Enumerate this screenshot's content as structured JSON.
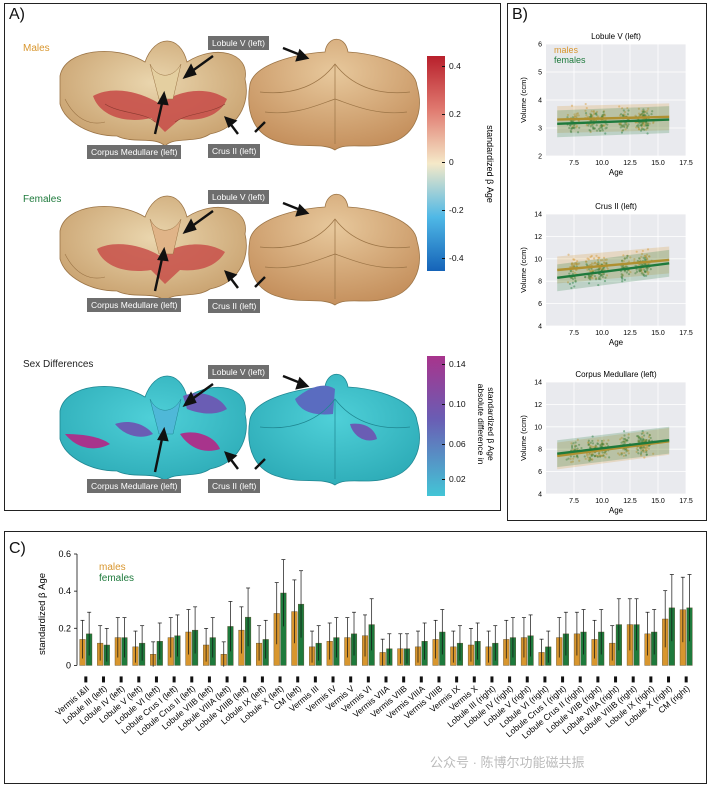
{
  "panelA": {
    "label": "A)",
    "rows": [
      {
        "title": "Males",
        "color": "#d8962e"
      },
      {
        "title": "Females",
        "color": "#1e7a3c"
      },
      {
        "title": "Sex Differences",
        "color": "#222222"
      }
    ],
    "callouts": {
      "lobule": "Lobule V (left)",
      "corpus": "Corpus Medullare (left)",
      "crus": "Crus II (left)"
    },
    "colorbar1": {
      "label": "standardized β Age",
      "ticks": [
        "0.4",
        "0.2",
        "0",
        "-0.2",
        "-0.4"
      ]
    },
    "colorbar2": {
      "label1": "absolute difference in",
      "label2": "standardized β Age",
      "ticks": [
        "0.14",
        "0.10",
        "0.06",
        "0.02"
      ]
    }
  },
  "panelB": {
    "label": "B)"
  },
  "panelC": {
    "label": "C)"
  },
  "watermark": "公众号 · 陈博尔功能磁共振",
  "chart_data": [
    {
      "type": "scatter",
      "title": "Lobule V (left)",
      "xlabel": "Age",
      "ylabel": "Volume (ccm)",
      "xlim": [
        5,
        17.5
      ],
      "ylim": [
        2,
        6
      ],
      "xticks": [
        7.5,
        10.0,
        12.5,
        15.0,
        17.5
      ],
      "yticks": [
        2,
        3,
        4,
        5,
        6
      ],
      "legend": [
        "males",
        "females"
      ],
      "series": [
        {
          "name": "males",
          "fit_x": [
            6,
            16
          ],
          "fit_y": [
            3.3,
            3.4
          ]
        },
        {
          "name": "females",
          "fit_x": [
            6,
            16
          ],
          "fit_y": [
            3.15,
            3.3
          ]
        }
      ]
    },
    {
      "type": "scatter",
      "title": "Crus II (left)",
      "xlabel": "Age",
      "ylabel": "Volume (ccm)",
      "xlim": [
        5,
        17.5
      ],
      "ylim": [
        4,
        14
      ],
      "xticks": [
        7.5,
        10.0,
        12.5,
        15.0,
        17.5
      ],
      "yticks": [
        4,
        6,
        8,
        10,
        12,
        14
      ],
      "series": [
        {
          "name": "males",
          "fit_x": [
            6,
            16
          ],
          "fit_y": [
            9.0,
            9.9
          ]
        },
        {
          "name": "females",
          "fit_x": [
            6,
            16
          ],
          "fit_y": [
            8.3,
            9.6
          ]
        }
      ]
    },
    {
      "type": "scatter",
      "title": "Corpus Medullare (left)",
      "xlabel": "Age",
      "ylabel": "Volume (ccm)",
      "xlim": [
        5,
        17.5
      ],
      "ylim": [
        4,
        14
      ],
      "xticks": [
        7.5,
        10.0,
        12.5,
        15.0,
        17.5
      ],
      "yticks": [
        4,
        6,
        8,
        10,
        12,
        14
      ],
      "series": [
        {
          "name": "males",
          "fit_x": [
            6,
            16
          ],
          "fit_y": [
            7.4,
            8.7
          ]
        },
        {
          "name": "females",
          "fit_x": [
            6,
            16
          ],
          "fit_y": [
            7.6,
            8.8
          ]
        }
      ]
    },
    {
      "type": "bar",
      "ylabel": "standardized β Age",
      "ylim": [
        -0.1,
        0.6
      ],
      "yticks": [
        "0.6",
        "0.4",
        "0.2",
        "0"
      ],
      "legend": [
        "males",
        "females"
      ],
      "categories": [
        "Vermis I&II",
        "Lobule III (left)",
        "Lobule IV (left)",
        "Lobule V (left)",
        "Lobule VI (left)",
        "Lobule Crus I (left)",
        "Lobule Crus II (left)",
        "Lobule VIIB (left)",
        "Lobule VIIIA (left)",
        "Lobule VIIIB (left)",
        "Lobule IX (left)",
        "Lobule X (left)",
        "CM (left)",
        "Vermis III",
        "Vermis IV",
        "Vermis V",
        "Vermis VI",
        "Vermis VIIA",
        "Vermis VIIB",
        "Vermis VIIIA",
        "Vermis VIIIB",
        "Vermis IX",
        "Vermis X",
        "Lobule III (right)",
        "Lobule IV (right)",
        "Lobule V (right)",
        "Lobule VI (right)",
        "Lobule Crus I (right)",
        "Lobule Crus II (right)",
        "Lobule VIIB (right)",
        "Lobule VIIIA (right)",
        "Lobule VIIIB (right)",
        "Lobule IX (right)",
        "Lobule X (right)",
        "CM (right)"
      ],
      "series": [
        {
          "name": "males",
          "values": [
            0.14,
            0.12,
            0.15,
            0.1,
            0.06,
            0.15,
            0.18,
            0.11,
            0.06,
            0.19,
            0.12,
            0.28,
            0.29,
            0.1,
            0.13,
            0.15,
            0.16,
            0.07,
            0.09,
            0.1,
            0.14,
            0.1,
            0.11,
            0.1,
            0.14,
            0.15,
            0.07,
            0.15,
            0.17,
            0.14,
            0.12,
            0.22,
            0.17,
            0.25,
            0.3
          ]
        },
        {
          "name": "females",
          "values": [
            0.17,
            0.11,
            0.15,
            0.12,
            0.13,
            0.16,
            0.19,
            0.15,
            0.21,
            0.26,
            0.14,
            0.39,
            0.33,
            0.12,
            0.15,
            0.17,
            0.22,
            0.09,
            0.09,
            0.13,
            0.18,
            0.12,
            0.13,
            0.12,
            0.15,
            0.16,
            0.1,
            0.17,
            0.18,
            0.18,
            0.22,
            0.22,
            0.18,
            0.31,
            0.31
          ]
        }
      ]
    }
  ]
}
